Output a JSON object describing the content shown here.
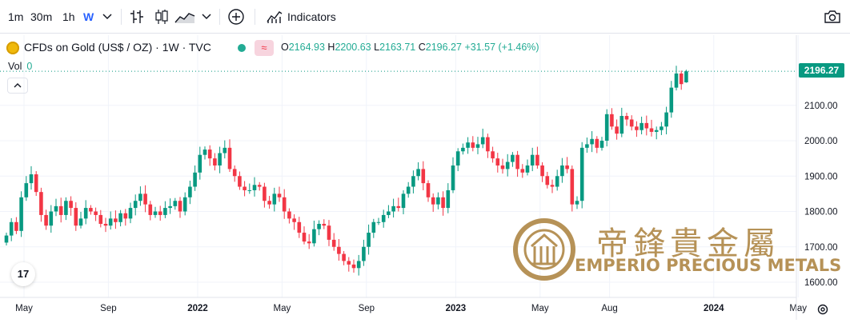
{
  "toolbar": {
    "intervals": [
      "1m",
      "30m",
      "1h",
      "W"
    ],
    "active_interval": "W",
    "indicators_label": "Indicators",
    "icons": [
      "chevron-down-icon",
      "bar-style-icon",
      "candle-style-icon",
      "area-style-icon",
      "add-compare-icon",
      "indicators-icon",
      "camera-icon"
    ]
  },
  "legend": {
    "symbol": "CFDs on Gold (US$ / OZ) · 1W · TVC",
    "open_label": "O",
    "open": "2164.93",
    "high_label": "H",
    "high": "2200.63",
    "low_label": "L",
    "low": "2163.71",
    "close_label": "C",
    "close": "2196.27",
    "change": "+31.57 (+1.46%)",
    "pill": "≈",
    "vol_label": "Vol",
    "vol_value": "0"
  },
  "last_price_tag": "2196.27",
  "tv_logo": "17",
  "watermark": {
    "chinese": "帝鋒貴金屬",
    "english": "EMPERIO PRECIOUS METALS"
  },
  "colors": {
    "up": "#089981",
    "down": "#f23645",
    "grid": "#f0f3fa",
    "axis_text": "#131722",
    "watermark": "#b69257"
  },
  "chart_data": {
    "type": "candlestick",
    "title": "",
    "xlabel": "",
    "ylabel": "",
    "ylim": [
      1580,
      2235
    ],
    "y_ticks": [
      1600,
      1700,
      1800,
      1900,
      2000,
      2100
    ],
    "x_tick_labels": [
      "May",
      "Sep",
      "2022",
      "May",
      "Sep",
      "2023",
      "May",
      "Aug",
      "2024",
      "May"
    ],
    "x_tick_weeks": [
      0,
      17,
      35,
      52,
      69,
      87,
      104,
      118,
      139,
      156
    ],
    "grid": true,
    "series_weekly_close": [
      1732,
      1770,
      1745,
      1840,
      1880,
      1905,
      1855,
      1790,
      1760,
      1800,
      1815,
      1790,
      1830,
      1810,
      1760,
      1780,
      1810,
      1800,
      1790,
      1765,
      1760,
      1780,
      1770,
      1795,
      1780,
      1810,
      1830,
      1850,
      1820,
      1790,
      1800,
      1790,
      1810,
      1815,
      1830,
      1800,
      1840,
      1870,
      1910,
      1960,
      1975,
      1950,
      1930,
      1965,
      1980,
      1920,
      1900,
      1870,
      1860,
      1860,
      1875,
      1870,
      1830,
      1820,
      1850,
      1840,
      1800,
      1780,
      1770,
      1740,
      1715,
      1710,
      1750,
      1765,
      1760,
      1720,
      1700,
      1680,
      1660,
      1650,
      1640,
      1660,
      1700,
      1740,
      1770,
      1770,
      1790,
      1800,
      1815,
      1810,
      1850,
      1870,
      1900,
      1920,
      1880,
      1840,
      1820,
      1840,
      1810,
      1860,
      1930,
      1970,
      1980,
      1995,
      1980,
      1990,
      2010,
      1970,
      1950,
      1930,
      1920,
      1940,
      1960,
      1920,
      1910,
      1930,
      1960,
      1930,
      1900,
      1875,
      1870,
      1900,
      1930,
      1920,
      1820,
      1830,
      1980,
      1990,
      2005,
      1980,
      2000,
      2075,
      2040,
      2020,
      2070,
      2060,
      2040,
      2030,
      2050,
      2035,
      2025,
      2030,
      2040,
      2080,
      2150,
      2190,
      2160,
      2196
    ],
    "last_open": 2164.93,
    "last_high": 2200.63,
    "last_low": 2163.71,
    "last_close": 2196.27
  }
}
